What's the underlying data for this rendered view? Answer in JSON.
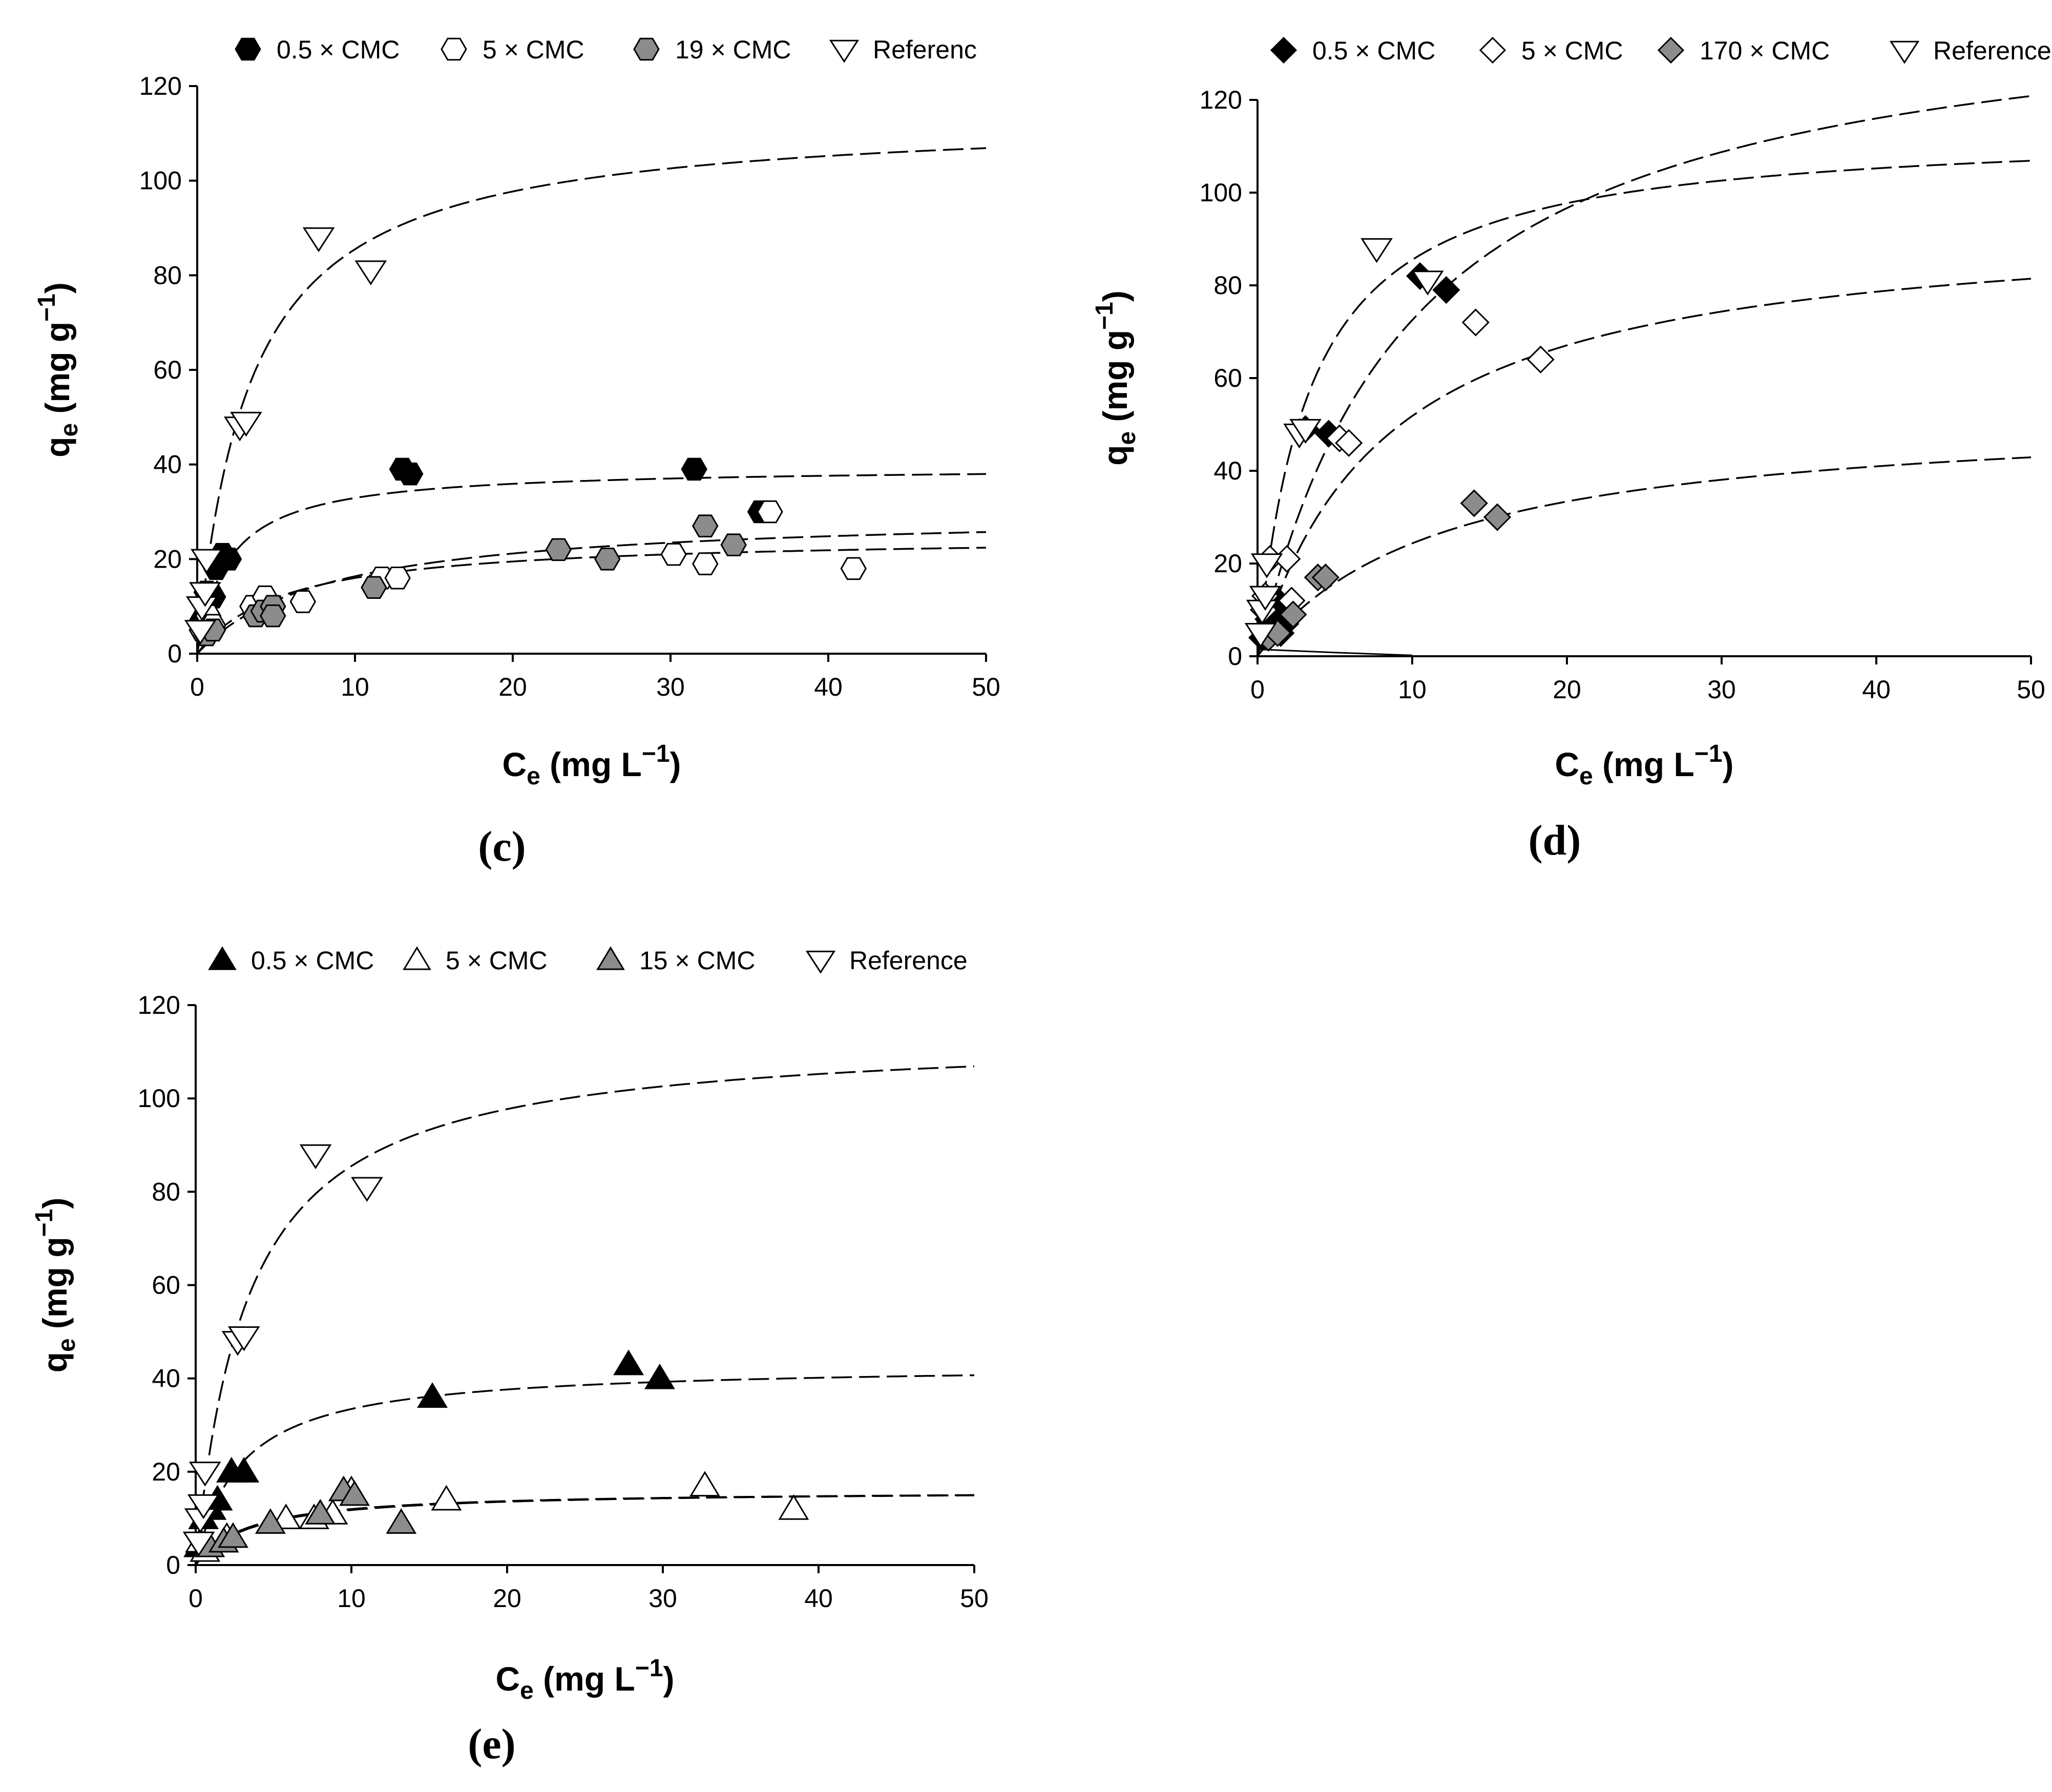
{
  "colors": {
    "black": "#000000",
    "white": "#ffffff",
    "grey": "#8c8c8c"
  },
  "chart_data": [
    {
      "id": "c",
      "type": "scatter",
      "panel_label": "(c)",
      "xlabel": {
        "main": "C",
        "sub": "e",
        "unit": " (mg L",
        "sup": "−1",
        "close": ")"
      },
      "ylabel": {
        "main": "q",
        "sub": "e",
        "unit": " (mg g",
        "sup": "−1",
        "close": ")"
      },
      "xlim": [
        0,
        50
      ],
      "ylim": [
        0,
        120
      ],
      "xticks": [
        "0",
        "10",
        "20",
        "30",
        "40",
        "50"
      ],
      "yticks": [
        "0",
        "20",
        "40",
        "60",
        "80",
        "100",
        "120"
      ],
      "legend": [
        "0.5 × CMC",
        "5 × CMC",
        "19 × CMC",
        "Referenc"
      ],
      "series": [
        {
          "name": "0.5 × CMC",
          "marker": "hexagon",
          "fill": "black",
          "points": [
            [
              0.3,
              7
            ],
            [
              0.6,
              13
            ],
            [
              1.0,
              12
            ],
            [
              1.2,
              18
            ],
            [
              1.6,
              21
            ],
            [
              2.0,
              20
            ],
            [
              13,
              39
            ],
            [
              13.5,
              38
            ],
            [
              31.5,
              39
            ],
            [
              35.7,
              30
            ]
          ],
          "fit": {
            "model": "langmuir",
            "qmax": 39.5,
            "K": 0.5
          }
        },
        {
          "name": "5 × CMC",
          "marker": "hexagon",
          "fill": "white",
          "points": [
            [
              0.3,
              5
            ],
            [
              0.7,
              8
            ],
            [
              1.0,
              6
            ],
            [
              3.5,
              10
            ],
            [
              4.3,
              12
            ],
            [
              6.7,
              11
            ],
            [
              11.7,
              16
            ],
            [
              12.7,
              16
            ],
            [
              30.2,
              21
            ],
            [
              32.2,
              19
            ],
            [
              36.3,
              30
            ],
            [
              41.6,
              18
            ]
          ],
          "fit": {
            "model": "langmuir",
            "qmax": 24.9,
            "K": 0.18
          }
        },
        {
          "name": "19 × CMC",
          "marker": "hexagon",
          "fill": "grey",
          "points": [
            [
              0.6,
              4
            ],
            [
              1.0,
              5
            ],
            [
              3.7,
              8
            ],
            [
              4.2,
              9
            ],
            [
              4.8,
              10
            ],
            [
              4.8,
              8
            ],
            [
              11.2,
              14
            ],
            [
              22.9,
              22
            ],
            [
              26.0,
              20
            ],
            [
              32.2,
              27
            ],
            [
              34.0,
              23
            ]
          ],
          "fit": {
            "model": "langmuir",
            "qmax": 30.0,
            "K": 0.12
          }
        },
        {
          "name": "Referenc",
          "marker": "triangle-down",
          "fill": "white",
          "points": [
            [
              0.2,
              5
            ],
            [
              0.3,
              10
            ],
            [
              0.5,
              13
            ],
            [
              0.6,
              20
            ],
            [
              2.7,
              48
            ],
            [
              3.1,
              49
            ],
            [
              7.7,
              88
            ],
            [
              11.0,
              81
            ]
          ],
          "fit": {
            "model": "langmuir",
            "qmax": 114,
            "K": 0.3
          }
        }
      ]
    },
    {
      "id": "d",
      "type": "scatter",
      "panel_label": "(d)",
      "xlabel": {
        "main": "C",
        "sub": "e",
        "unit": " (mg L",
        "sup": "−1",
        "close": ")"
      },
      "ylabel": {
        "main": "q",
        "sub": "e",
        "unit": " (mg g",
        "sup": "−1",
        "close": ")"
      },
      "xlim": [
        0,
        50
      ],
      "ylim": [
        0,
        120
      ],
      "xticks": [
        "0",
        "10",
        "20",
        "30",
        "40",
        "50"
      ],
      "yticks": [
        "0",
        "20",
        "40",
        "60",
        "80",
        "100",
        "120"
      ],
      "legend": [
        "0.5 × CMC",
        "5 × CMC",
        "170 × CMC",
        "Reference"
      ],
      "series": [
        {
          "name": "0.5 × CMC",
          "marker": "diamond",
          "fill": "black",
          "points": [
            [
              0.3,
              4
            ],
            [
              0.7,
              8
            ],
            [
              1.0,
              10
            ],
            [
              1.3,
              12
            ],
            [
              1.5,
              5
            ],
            [
              1.8,
              7
            ],
            [
              3.1,
              49
            ],
            [
              4.6,
              48
            ],
            [
              10.5,
              82
            ],
            [
              12.2,
              79
            ]
          ],
          "fit": {
            "model": "langmuir",
            "qmax": 145,
            "K": 0.1
          }
        },
        {
          "name": "5 × CMC",
          "marker": "diamond",
          "fill": "white",
          "points": [
            [
              0.4,
              10
            ],
            [
              0.5,
              13
            ],
            [
              0.8,
              21
            ],
            [
              1.9,
              21
            ],
            [
              2.2,
              12
            ],
            [
              5.3,
              47
            ],
            [
              5.9,
              46
            ],
            [
              14.1,
              72
            ],
            [
              18.3,
              64
            ]
          ],
          "fit": {
            "model": "langmuir",
            "qmax": 95,
            "K": 0.12
          }
        },
        {
          "name": "170 × CMC",
          "marker": "diamond",
          "fill": "grey",
          "points": [
            [
              0.7,
              4
            ],
            [
              1.3,
              5
            ],
            [
              2.3,
              9
            ],
            [
              3.9,
              17
            ],
            [
              4.4,
              17
            ],
            [
              14.0,
              33
            ],
            [
              15.5,
              30
            ]
          ],
          "fit": {
            "model": "langmuir",
            "qmax": 53,
            "K": 0.085
          }
        },
        {
          "name": "Reference",
          "marker": "triangle-down",
          "fill": "white",
          "points": [
            [
              0.2,
              5
            ],
            [
              0.3,
              10
            ],
            [
              0.5,
              13
            ],
            [
              0.6,
              20
            ],
            [
              2.7,
              48
            ],
            [
              3.1,
              49
            ],
            [
              7.7,
              88
            ],
            [
              11.0,
              81
            ]
          ],
          "fit": {
            "model": "langmuir",
            "qmax": 114,
            "K": 0.3
          }
        }
      ]
    },
    {
      "id": "e",
      "type": "scatter",
      "panel_label": "(e)",
      "xlabel": {
        "main": "C",
        "sub": "e",
        "unit": " (mg L",
        "sup": "−1",
        "close": ")"
      },
      "ylabel": {
        "main": "q",
        "sub": "e",
        "unit": " (mg g",
        "sup": "−1",
        "close": ")"
      },
      "xlim": [
        0,
        50
      ],
      "ylim": [
        0,
        120
      ],
      "xticks": [
        "0",
        "10",
        "20",
        "30",
        "40",
        "50"
      ],
      "yticks": [
        "0",
        "20",
        "40",
        "60",
        "80",
        "100",
        "120"
      ],
      "legend": [
        "0.5 × CMC",
        "5 × CMC",
        "15 × CMC",
        "Reference"
      ],
      "series": [
        {
          "name": "0.5 × CMC",
          "marker": "triangle-up",
          "fill": "black",
          "points": [
            [
              0.2,
              4
            ],
            [
              0.5,
              10
            ],
            [
              1.0,
              12
            ],
            [
              1.4,
              14
            ],
            [
              2.3,
              20
            ],
            [
              3.1,
              20
            ],
            [
              15.2,
              36
            ],
            [
              27.8,
              43
            ],
            [
              29.8,
              40
            ]
          ],
          "fit": {
            "model": "langmuir",
            "qmax": 43,
            "K": 0.35
          }
        },
        {
          "name": "5 × CMC",
          "marker": "triangle-up",
          "fill": "white",
          "points": [
            [
              0.3,
              5
            ],
            [
              0.6,
              3
            ],
            [
              2.0,
              6
            ],
            [
              5.8,
              10
            ],
            [
              7.6,
              10
            ],
            [
              8.8,
              11
            ],
            [
              10.0,
              16
            ],
            [
              16.1,
              14
            ],
            [
              32.7,
              17
            ],
            [
              38.4,
              12
            ]
          ],
          "fit": {
            "model": "langmuir",
            "qmax": 16,
            "K": 0.3
          }
        },
        {
          "name": "15 × CMC",
          "marker": "triangle-up",
          "fill": "grey",
          "points": [
            [
              0.9,
              4
            ],
            [
              1.8,
              5
            ],
            [
              2.4,
              6
            ],
            [
              4.8,
              9
            ],
            [
              8.0,
              11
            ],
            [
              9.5,
              16
            ],
            [
              10.2,
              15
            ],
            [
              13.2,
              9
            ]
          ],
          "fit": {
            "model": "langmuir",
            "qmax": 16,
            "K": 0.28
          }
        },
        {
          "name": "Reference",
          "marker": "triangle-down",
          "fill": "white",
          "points": [
            [
              0.2,
              5
            ],
            [
              0.3,
              10
            ],
            [
              0.5,
              13
            ],
            [
              0.6,
              20
            ],
            [
              2.7,
              48
            ],
            [
              3.1,
              49
            ],
            [
              7.7,
              88
            ],
            [
              11.0,
              81
            ]
          ],
          "fit": {
            "model": "langmuir",
            "qmax": 114,
            "K": 0.3
          }
        }
      ]
    }
  ]
}
